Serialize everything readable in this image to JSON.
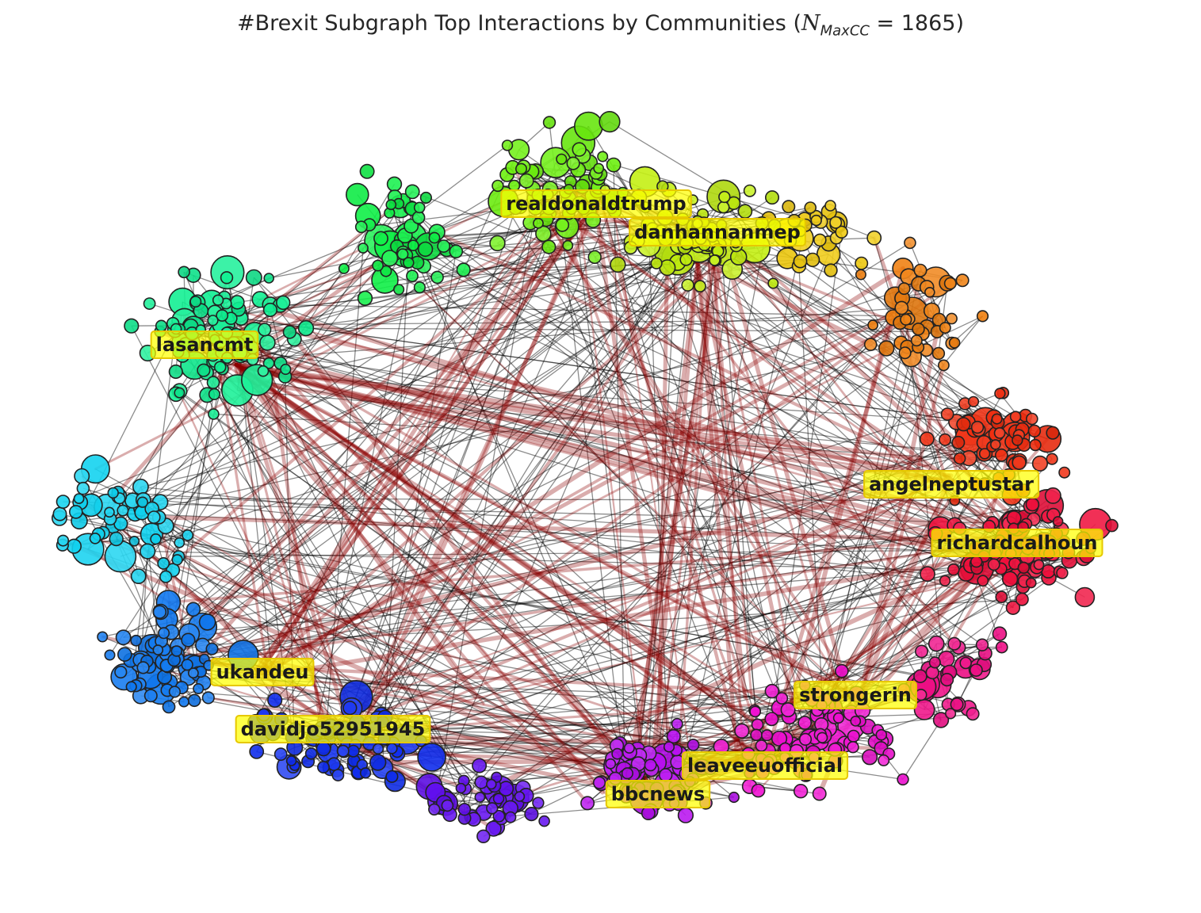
{
  "title": {
    "text": "#Brexit Subgraph Top Interactions by Communities (",
    "math_symbol": "N",
    "math_subscript": "MaxCC",
    "math_rest": " = 1865",
    "close": ")"
  },
  "communities": [
    {
      "name": "green-light",
      "color": "#7ee022",
      "hue": 95
    },
    {
      "name": "green",
      "color": "#12e84a",
      "hue": 135
    },
    {
      "name": "mint",
      "color": "#17e88e",
      "hue": 155
    },
    {
      "name": "cyan",
      "color": "#17d4e8",
      "hue": 188
    },
    {
      "name": "azure",
      "color": "#1b86f0",
      "hue": 212
    },
    {
      "name": "blue",
      "color": "#1733f0",
      "hue": 232
    },
    {
      "name": "indigo",
      "color": "#5b0ff0",
      "hue": 262
    },
    {
      "name": "violet",
      "color": "#a10fe8",
      "hue": 285
    },
    {
      "name": "magenta",
      "color": "#ec14d6",
      "hue": 308
    },
    {
      "name": "pink",
      "color": "#f0149a",
      "hue": 328
    },
    {
      "name": "crimson",
      "color": "#f3124a",
      "hue": 348
    },
    {
      "name": "red",
      "color": "#f52a12",
      "hue": 8
    },
    {
      "name": "orange",
      "color": "#f9901a",
      "hue": 30
    },
    {
      "name": "yellow",
      "color": "#f8d614",
      "hue": 50
    },
    {
      "name": "yellow-green",
      "color": "#c7ef1a",
      "hue": 72
    }
  ],
  "hub_labels": [
    {
      "id": "realdonaldtrump",
      "text": "realdonaldtrump"
    },
    {
      "id": "danhannanmep",
      "text": "danhannanmep"
    },
    {
      "id": "lasancmt",
      "text": "lasancmt"
    },
    {
      "id": "angelneptustar",
      "text": "angelneptustar"
    },
    {
      "id": "richardcalhoun",
      "text": "richardcalhoun"
    },
    {
      "id": "ukandeu",
      "text": "ukandeu"
    },
    {
      "id": "strongerin",
      "text": "strongerin"
    },
    {
      "id": "davidjo52951945",
      "text": "davidjo52951945"
    },
    {
      "id": "leaveeuofficial",
      "text": "leaveeuofficial"
    },
    {
      "id": "bbcnews",
      "text": "bbcnews"
    }
  ],
  "style": {
    "edge_color": "#000000",
    "strong_edge_color": "#8b0000",
    "label_background": "#ffff00",
    "node_outline": "#222222"
  }
}
